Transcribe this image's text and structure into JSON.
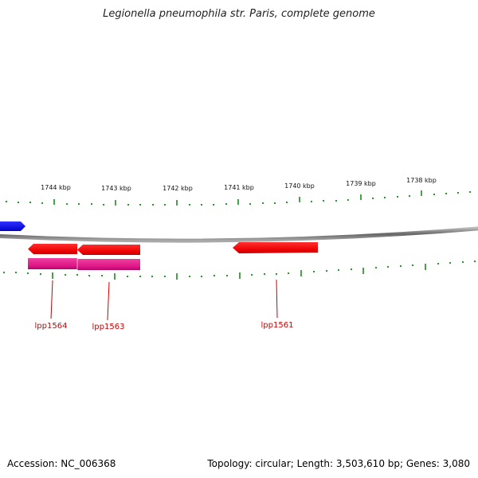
{
  "title": "Legionella pneumophila str. Paris, complete genome",
  "footer": {
    "accession": "Accession: NC_006368",
    "summary": "Topology: circular; Length: 3,503,610 bp; Genes: 3,080"
  },
  "scale_labels": [
    "1744 kbp",
    "1743 kbp",
    "1742 kbp",
    "1741 kbp",
    "1740 kbp",
    "1739 kbp",
    "1738 kbp"
  ],
  "gene_labels": [
    "lpp1564",
    "lpp1563",
    "lpp1561"
  ],
  "colors": {
    "backbone": "#888888",
    "tick": "#1a8a1a",
    "gene_red": "#ff0000",
    "gene_magenta": "#e0198a",
    "gene_blue": "#0000ff",
    "label_line": "#cc0000"
  }
}
